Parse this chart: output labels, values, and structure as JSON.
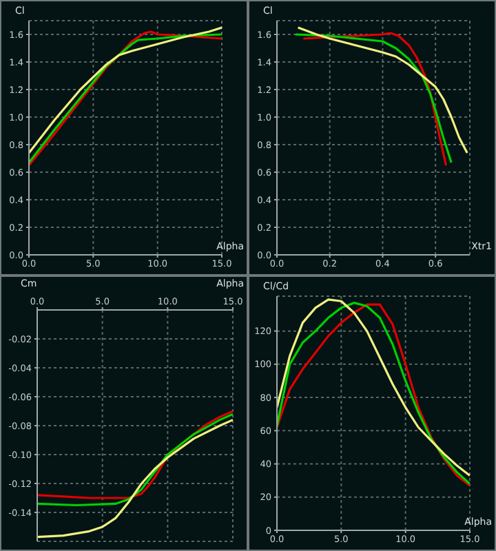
{
  "chart_data": [
    {
      "type": "line",
      "xlabel": "Alpha",
      "ylabel": "Cl",
      "xlim": [
        0,
        15
      ],
      "xticks": [
        {
          "value": 0,
          "label": "0.0"
        },
        {
          "value": 5,
          "label": "5.0"
        },
        {
          "value": 10,
          "label": "10.0"
        },
        {
          "value": 15,
          "label": "15.0"
        }
      ],
      "ylim": [
        0,
        1.7
      ],
      "yticks": [
        {
          "value": 0,
          "label": "0.0"
        },
        {
          "value": 0.2,
          "label": "0.2"
        },
        {
          "value": 0.4,
          "label": "0.4"
        },
        {
          "value": 0.6,
          "label": "0.6"
        },
        {
          "value": 0.8,
          "label": "0.8"
        },
        {
          "value": 1,
          "label": "1.0"
        },
        {
          "value": 1.2,
          "label": "1.2"
        },
        {
          "value": 1.4,
          "label": "1.4"
        },
        {
          "value": 1.6,
          "label": "1.6"
        }
      ],
      "grid": true,
      "line_style": "solid",
      "marker": "none",
      "series": [
        {
          "color": "#e00000",
          "x": [
            0,
            2,
            4,
            6,
            7,
            8,
            9,
            9.5,
            10,
            12,
            15
          ],
          "values": [
            0.65,
            0.88,
            1.12,
            1.36,
            1.45,
            1.55,
            1.61,
            1.62,
            1.6,
            1.59,
            1.57
          ]
        },
        {
          "color": "#00d000",
          "x": [
            0,
            2,
            4,
            6,
            7,
            8,
            8.5,
            10,
            12,
            15
          ],
          "values": [
            0.67,
            0.91,
            1.14,
            1.37,
            1.45,
            1.53,
            1.56,
            1.57,
            1.59,
            1.6
          ]
        },
        {
          "color": "#f0f080",
          "x": [
            0,
            2,
            4,
            6,
            7,
            8,
            10,
            12,
            14,
            15
          ],
          "values": [
            0.74,
            0.98,
            1.2,
            1.38,
            1.45,
            1.48,
            1.53,
            1.58,
            1.62,
            1.65
          ]
        }
      ]
    },
    {
      "type": "line",
      "xlabel": "Xtr1",
      "ylabel": "Cl",
      "xlim": [
        0,
        0.73
      ],
      "xticks": [
        {
          "value": 0,
          "label": "0.0"
        },
        {
          "value": 0.2,
          "label": "0.2"
        },
        {
          "value": 0.4,
          "label": "0.4"
        },
        {
          "value": 0.6,
          "label": "0.6"
        }
      ],
      "ylim": [
        0,
        1.7
      ],
      "yticks": [
        {
          "value": 0,
          "label": "0.0"
        },
        {
          "value": 0.2,
          "label": "0.2"
        },
        {
          "value": 0.4,
          "label": "0.4"
        },
        {
          "value": 0.6,
          "label": "0.6"
        },
        {
          "value": 0.8,
          "label": "0.8"
        },
        {
          "value": 1,
          "label": "1.0"
        },
        {
          "value": 1.2,
          "label": "1.2"
        },
        {
          "value": 1.4,
          "label": "1.4"
        },
        {
          "value": 1.6,
          "label": "1.6"
        }
      ],
      "grid": true,
      "line_style": "solid",
      "marker": "none",
      "series": [
        {
          "color": "#e00000",
          "x": [
            0.1,
            0.2,
            0.3,
            0.4,
            0.43,
            0.46,
            0.5,
            0.53,
            0.56,
            0.58,
            0.6,
            0.62,
            0.64
          ],
          "values": [
            1.57,
            1.58,
            1.59,
            1.6,
            1.61,
            1.59,
            1.52,
            1.43,
            1.3,
            1.18,
            1.0,
            0.82,
            0.65
          ]
        },
        {
          "color": "#00d000",
          "x": [
            0.07,
            0.2,
            0.3,
            0.4,
            0.45,
            0.5,
            0.55,
            0.58,
            0.6,
            0.63,
            0.66
          ],
          "values": [
            1.6,
            1.59,
            1.57,
            1.55,
            1.5,
            1.42,
            1.3,
            1.17,
            1.05,
            0.85,
            0.67
          ]
        },
        {
          "color": "#f0f080",
          "x": [
            0.08,
            0.15,
            0.2,
            0.3,
            0.4,
            0.45,
            0.5,
            0.55,
            0.6,
            0.63,
            0.66,
            0.69,
            0.72
          ],
          "values": [
            1.65,
            1.6,
            1.57,
            1.52,
            1.47,
            1.44,
            1.38,
            1.3,
            1.22,
            1.13,
            1.0,
            0.85,
            0.74
          ]
        }
      ]
    },
    {
      "type": "line",
      "xlabel": "Alpha",
      "ylabel": "Cm",
      "xlim": [
        0,
        15
      ],
      "xticks": [
        {
          "value": 0,
          "label": "0.0"
        },
        {
          "value": 5,
          "label": "5.0"
        },
        {
          "value": 10,
          "label": "10.0"
        },
        {
          "value": 15,
          "label": "15.0"
        }
      ],
      "ylim": [
        -0.16,
        0
      ],
      "yticks": [
        {
          "value": -0.02,
          "label": "-0.02"
        },
        {
          "value": -0.04,
          "label": "-0.04"
        },
        {
          "value": -0.06,
          "label": "-0.06"
        },
        {
          "value": -0.08,
          "label": "-0.08"
        },
        {
          "value": -0.1,
          "label": "-0.10"
        },
        {
          "value": -0.12,
          "label": "-0.12"
        },
        {
          "value": -0.14,
          "label": "-0.14"
        }
      ],
      "grid": true,
      "line_style": "solid",
      "marker": "none",
      "series": [
        {
          "color": "#e00000",
          "x": [
            0,
            2,
            4,
            6,
            7,
            8,
            8.5,
            9,
            10,
            11,
            12,
            13,
            14,
            15
          ],
          "values": [
            -0.128,
            -0.129,
            -0.13,
            -0.13,
            -0.13,
            -0.127,
            -0.122,
            -0.116,
            -0.101,
            -0.093,
            -0.086,
            -0.079,
            -0.074,
            -0.07
          ]
        },
        {
          "color": "#00d000",
          "x": [
            0,
            3,
            6,
            7,
            8,
            9,
            10,
            12,
            14,
            15
          ],
          "values": [
            -0.134,
            -0.135,
            -0.134,
            -0.131,
            -0.124,
            -0.112,
            -0.1,
            -0.086,
            -0.076,
            -0.072
          ]
        },
        {
          "color": "#f0f080",
          "x": [
            0,
            2,
            4,
            5,
            6,
            7,
            8,
            9,
            10,
            12,
            14,
            15
          ],
          "values": [
            -0.157,
            -0.156,
            -0.153,
            -0.15,
            -0.144,
            -0.133,
            -0.12,
            -0.11,
            -0.102,
            -0.089,
            -0.08,
            -0.076
          ]
        }
      ]
    },
    {
      "type": "line",
      "xlabel": "Alpha",
      "ylabel": "Cl/Cd",
      "xlim": [
        0,
        15
      ],
      "xticks": [
        {
          "value": 0,
          "label": "0.0"
        },
        {
          "value": 5,
          "label": "5.0"
        },
        {
          "value": 10,
          "label": "10.0"
        },
        {
          "value": 15,
          "label": "15.0"
        }
      ],
      "ylim": [
        0,
        141
      ],
      "yticks": [
        0,
        20,
        40,
        60,
        80,
        100,
        120
      ],
      "grid": true,
      "line_style": "solid",
      "marker": "none",
      "series": [
        {
          "color": "#e00000",
          "x": [
            0,
            1,
            2,
            3,
            4,
            5,
            6,
            7,
            8,
            9,
            10,
            11,
            12,
            13,
            14,
            15
          ],
          "values": [
            62,
            85,
            97,
            107,
            117,
            125,
            131,
            136,
            136,
            124,
            100,
            74,
            56,
            43,
            33,
            27
          ]
        },
        {
          "color": "#00d000",
          "x": [
            0,
            1,
            2,
            3,
            4,
            5,
            6,
            7,
            8,
            9,
            10,
            11,
            12,
            13,
            14,
            15
          ],
          "values": [
            63,
            100,
            113,
            120,
            128,
            134,
            137,
            135,
            128,
            112,
            90,
            71,
            55,
            44,
            35,
            28
          ]
        },
        {
          "color": "#f0f080",
          "x": [
            0,
            1,
            2,
            3,
            4,
            5,
            6,
            7,
            8,
            9,
            10,
            11,
            12,
            13,
            14,
            15
          ],
          "values": [
            74,
            105,
            125,
            134,
            139,
            138,
            131,
            120,
            104,
            88,
            74,
            62,
            54,
            46,
            39,
            33
          ]
        }
      ]
    }
  ]
}
